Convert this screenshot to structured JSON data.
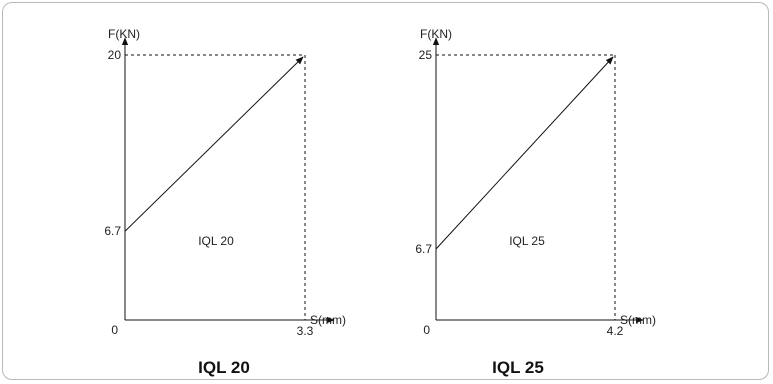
{
  "chart_data": [
    {
      "type": "line",
      "title": "IQL 20",
      "inner_label": "IQL 20",
      "xlabel": "S(mm)",
      "ylabel": "F(KN)",
      "origin_label": "0",
      "x_ticks": [
        "3.3"
      ],
      "y_ticks": [
        "6.7",
        "20"
      ],
      "xlim": [
        0,
        3.3
      ],
      "ylim": [
        0,
        20
      ],
      "series": [
        {
          "x": [
            0,
            3.3
          ],
          "y": [
            6.7,
            20
          ]
        }
      ],
      "colors": {
        "line": "#111111",
        "guide": "#111111"
      }
    },
    {
      "type": "line",
      "title": "IQL 25",
      "inner_label": "IQL 25",
      "xlabel": "S(mm)",
      "ylabel": "F(KN)",
      "origin_label": "0",
      "x_ticks": [
        "4.2"
      ],
      "y_ticks": [
        "6.7",
        "25"
      ],
      "xlim": [
        0,
        4.2
      ],
      "ylim": [
        0,
        25
      ],
      "series": [
        {
          "x": [
            0,
            4.2
          ],
          "y": [
            6.7,
            25
          ]
        }
      ],
      "colors": {
        "line": "#111111",
        "guide": "#111111"
      }
    }
  ]
}
